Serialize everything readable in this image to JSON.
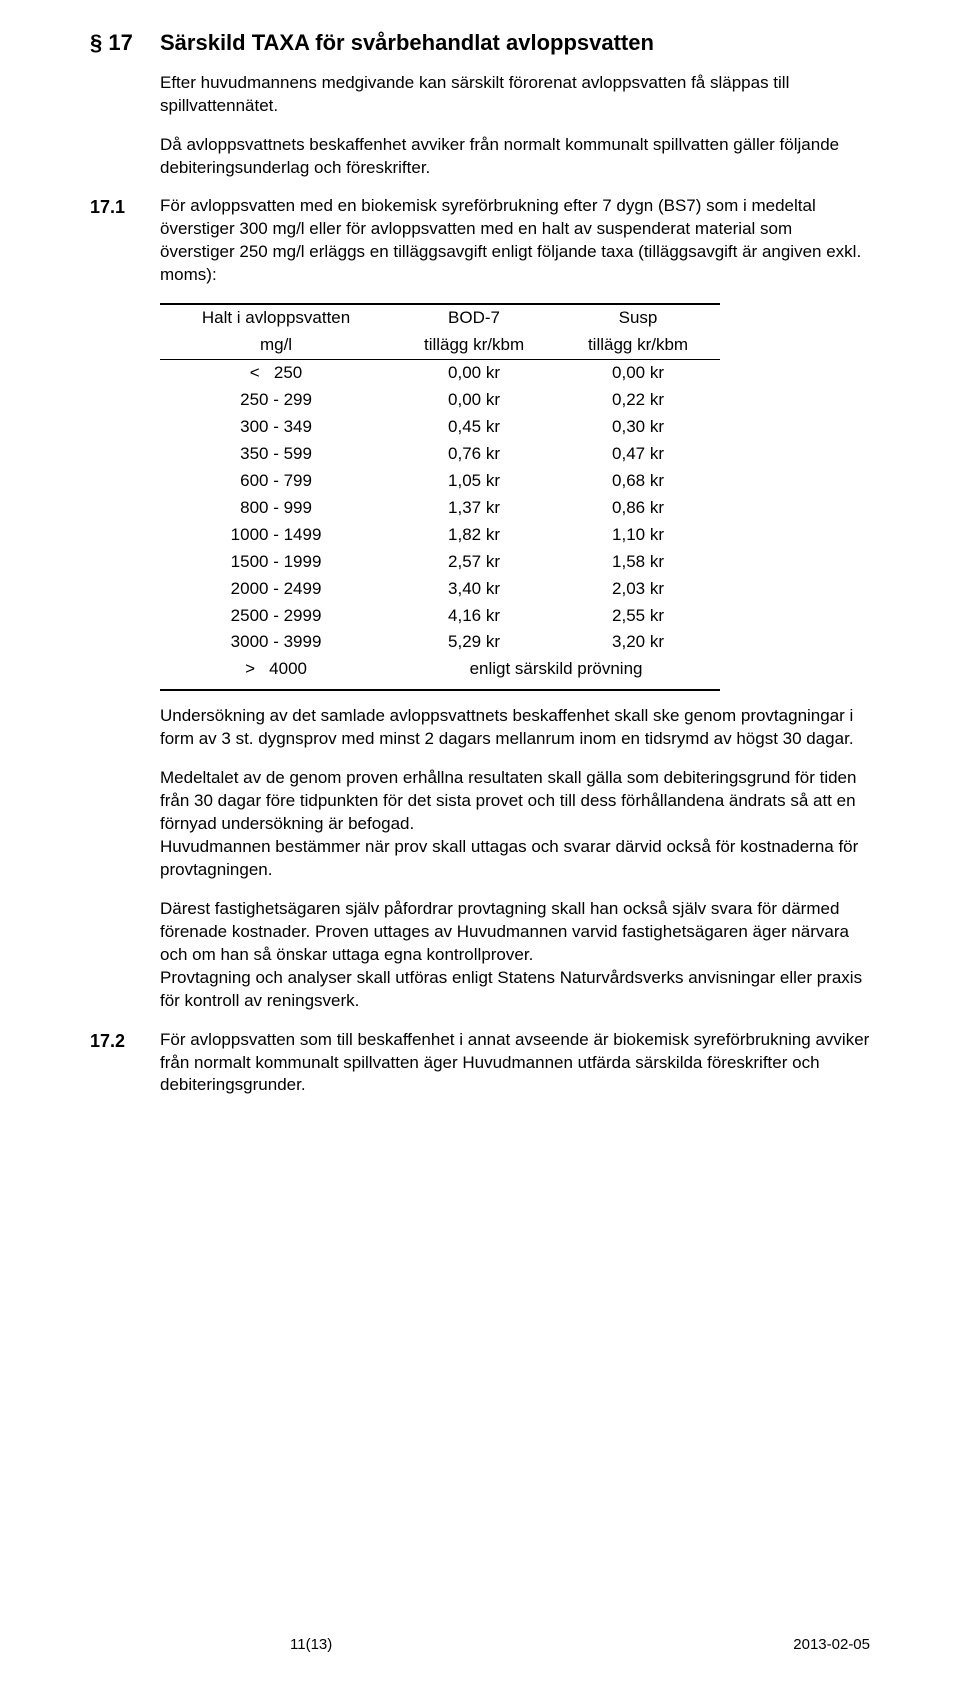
{
  "heading": {
    "num": "§ 17",
    "title": "Särskild TAXA för svårbehandlat avloppsvatten"
  },
  "intro": {
    "p1": "Efter huvudmannens medgivande kan särskilt förorenat avloppsvatten få släppas till spillvattennätet.",
    "p2": "Då avloppsvattnets beskaffenhet avviker från normalt kommunalt spillvatten gäller följande debiteringsunderlag och föreskrifter."
  },
  "s17_1": {
    "num": "17.1",
    "p": "För avloppsvatten med en biokemisk syreförbrukning efter 7 dygn (BS7) som i medeltal överstiger 300 mg/l eller för avloppsvatten med en halt av suspenderat material som överstiger 250 mg/l erläggs en tilläggsavgift enligt följande taxa (tilläggsavgift är angiven exkl. moms):"
  },
  "table": {
    "head1": {
      "c1": "Halt i avloppsvatten",
      "c2": "BOD-7",
      "c3": "Susp"
    },
    "head2": {
      "c1": "mg/l",
      "c2": "tillägg kr/kbm",
      "c3": "tillägg kr/kbm"
    },
    "rows": [
      {
        "range": "<   250",
        "b": "0,00 kr",
        "s": "0,00 kr"
      },
      {
        "range": "250 - 299",
        "b": "0,00 kr",
        "s": "0,22 kr"
      },
      {
        "range": "300 - 349",
        "b": "0,45 kr",
        "s": "0,30 kr"
      },
      {
        "range": "350 - 599",
        "b": "0,76 kr",
        "s": "0,47 kr"
      },
      {
        "range": "600 - 799",
        "b": "1,05 kr",
        "s": "0,68 kr"
      },
      {
        "range": "800 - 999",
        "b": "1,37 kr",
        "s": "0,86 kr"
      },
      {
        "range": "1000 - 1499",
        "b": "1,82 kr",
        "s": "1,10 kr"
      },
      {
        "range": "1500 - 1999",
        "b": "2,57 kr",
        "s": "1,58 kr"
      },
      {
        "range": "2000 - 2499",
        "b": "3,40 kr",
        "s": "2,03 kr"
      },
      {
        "range": "2500 - 2999",
        "b": "4,16 kr",
        "s": "2,55 kr"
      },
      {
        "range": "3000 - 3999",
        "b": "5,29 kr",
        "s": "3,20 kr"
      }
    ],
    "lastrow": {
      "range": ">   4000",
      "note": "enligt särskild prövning"
    }
  },
  "after": {
    "p1": "Undersökning av det samlade avloppsvattnets beskaffenhet skall ske genom provtagningar i form av 3 st. dygnsprov med minst 2 dagars mellanrum inom en tidsrymd av högst 30 dagar.",
    "p2": "Medeltalet av de genom proven erhållna resultaten skall gälla som debiteringsgrund för tiden från 30 dagar före tidpunkten för det sista provet och till dess förhållandena ändrats så att en förnyad undersökning är befogad.",
    "p3": "Huvudmannen bestämmer när prov skall uttagas och svarar därvid också för kostnaderna för provtagningen.",
    "p4": "Därest fastighetsägaren själv påfordrar provtagning skall han också själv svara för därmed förenade kostnader. Proven uttages av Huvudmannen varvid fastighetsägaren äger närvara och om han så önskar uttaga egna kontrollprover.",
    "p5": "Provtagning och analyser skall utföras enligt Statens Naturvårdsverks anvisningar eller praxis för kontroll av reningsverk."
  },
  "s17_2": {
    "num": "17.2",
    "p": "För avloppsvatten som till beskaffenhet i annat avseende är biokemisk syreförbrukning avviker från normalt kommunalt spillvatten äger Huvudmannen utfärda särskilda föreskrifter och debiteringsgrunder."
  },
  "footer": {
    "page": "11(13)",
    "date": "2013-02-05"
  }
}
